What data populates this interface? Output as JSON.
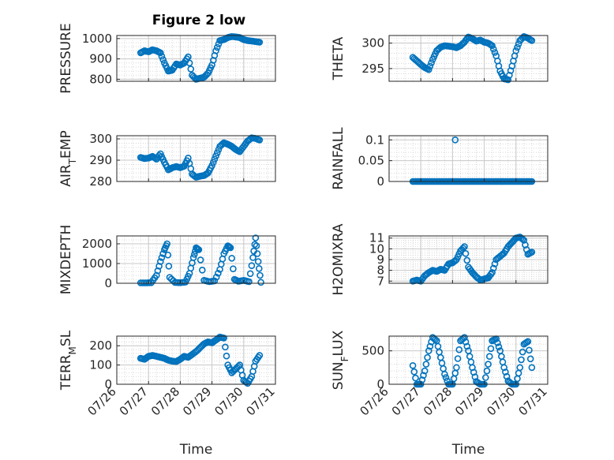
{
  "figure": {
    "title": "Figure 2 low",
    "marker_color": "#0072BD"
  },
  "chart_data": [
    {
      "type": "scatter",
      "name": "pressure",
      "ylabel": "PRESSURE",
      "ylim": [
        790,
        1015
      ],
      "yticks": [
        800,
        900,
        1000
      ],
      "x": [
        "07/26 18:00",
        "07/26 21:00",
        "07/27 00:00",
        "07/27 03:00",
        "07/27 06:00",
        "07/27 09:00",
        "07/27 12:00",
        "07/27 15:00",
        "07/27 18:00",
        "07/27 21:00",
        "07/28 00:00",
        "07/28 03:00",
        "07/28 06:00",
        "07/28 09:00",
        "07/28 12:00",
        "07/28 15:00",
        "07/28 18:00",
        "07/28 21:00",
        "07/29 00:00",
        "07/29 03:00",
        "07/29 06:00",
        "07/29 09:00",
        "07/29 12:00",
        "07/29 15:00",
        "07/29 18:00",
        "07/29 21:00",
        "07/30 00:00",
        "07/30 03:00",
        "07/30 06:00",
        "07/30 09:00",
        "07/30 12:00"
      ],
      "y": [
        930,
        940,
        935,
        945,
        940,
        930,
        880,
        840,
        845,
        875,
        870,
        880,
        910,
        820,
        800,
        805,
        810,
        830,
        870,
        940,
        990,
        995,
        1005,
        1010,
        1008,
        1005,
        995,
        990,
        988,
        985,
        982
      ]
    },
    {
      "type": "scatter",
      "name": "theta",
      "ylabel": "THETA",
      "ylim": [
        292.5,
        301.5
      ],
      "yticks": [
        295,
        300
      ],
      "x": [
        "07/26 18:00",
        "07/26 21:00",
        "07/27 00:00",
        "07/27 03:00",
        "07/27 06:00",
        "07/27 09:00",
        "07/27 12:00",
        "07/27 15:00",
        "07/27 18:00",
        "07/27 21:00",
        "07/28 00:00",
        "07/28 03:00",
        "07/28 06:00",
        "07/28 09:00",
        "07/28 12:00",
        "07/28 15:00",
        "07/28 18:00",
        "07/28 21:00",
        "07/29 00:00",
        "07/29 03:00",
        "07/29 06:00",
        "07/29 09:00",
        "07/29 12:00",
        "07/29 15:00",
        "07/29 18:00",
        "07/29 21:00",
        "07/30 00:00",
        "07/30 03:00",
        "07/30 06:00",
        "07/30 09:00",
        "07/30 12:00"
      ],
      "y": [
        297.2,
        296.5,
        295.8,
        295.2,
        294.8,
        296.8,
        298.5,
        299.2,
        299.5,
        299.4,
        299.3,
        299.1,
        299.5,
        300.2,
        301.2,
        300.9,
        300.4,
        300.6,
        300.2,
        300.0,
        299.5,
        297.5,
        294.5,
        293.0,
        292.8,
        295.5,
        298.5,
        300.5,
        301.3,
        301.0,
        300.5
      ]
    },
    {
      "type": "scatter",
      "name": "air_temp",
      "ylabel": "AIR_TEMP",
      "ylim": [
        280,
        301.5
      ],
      "yticks": [
        280,
        290,
        300
      ],
      "x": [
        "07/26 18:00",
        "07/26 21:00",
        "07/27 00:00",
        "07/27 03:00",
        "07/27 06:00",
        "07/27 09:00",
        "07/27 12:00",
        "07/27 15:00",
        "07/27 18:00",
        "07/27 21:00",
        "07/28 00:00",
        "07/28 03:00",
        "07/28 06:00",
        "07/28 09:00",
        "07/28 12:00",
        "07/28 15:00",
        "07/28 18:00",
        "07/28 21:00",
        "07/29 00:00",
        "07/29 03:00",
        "07/29 06:00",
        "07/29 09:00",
        "07/29 12:00",
        "07/29 15:00",
        "07/29 18:00",
        "07/29 21:00",
        "07/30 00:00",
        "07/30 03:00",
        "07/30 06:00",
        "07/30 09:00",
        "07/30 12:00"
      ],
      "y": [
        291.3,
        290.8,
        291.0,
        291.8,
        290.5,
        293.0,
        289.0,
        285.5,
        286.5,
        287.0,
        286.5,
        287.2,
        291.0,
        283.5,
        282.0,
        282.5,
        282.8,
        284.0,
        287.5,
        292.0,
        296.5,
        298.2,
        297.5,
        296.5,
        295.0,
        294.0,
        296.5,
        299.0,
        300.5,
        300.2,
        299.5
      ]
    },
    {
      "type": "scatter",
      "name": "rainfall",
      "ylabel": "RAINFALL",
      "ylim": [
        0,
        0.11
      ],
      "yticks": [
        0,
        0.05,
        0.1
      ],
      "ytick_labels": [
        "0",
        "0.05",
        "0.1"
      ],
      "x": [
        "07/26 18:00",
        "07/27 00:00",
        "07/27 06:00",
        "07/27 12:00",
        "07/27 18:00",
        "07/28 00:00",
        "07/28 06:00",
        "07/28 12:00",
        "07/28 18:00",
        "07/29 00:00",
        "07/29 06:00",
        "07/29 12:00",
        "07/29 18:00",
        "07/30 00:00",
        "07/30 06:00",
        "07/30 12:00",
        "07/28 02:00"
      ],
      "y": [
        0,
        0,
        0,
        0,
        0,
        0,
        0,
        0,
        0,
        0,
        0,
        0,
        0,
        0,
        0,
        0,
        0.1
      ],
      "note": "continuous zeros from 07/26 18:00 to 07/30 12:00 with a single 0.1 reading"
    },
    {
      "type": "scatter",
      "name": "mixdepth",
      "ylabel": "MIXDEPTH",
      "ylim": [
        0,
        2400
      ],
      "yticks": [
        0,
        1000,
        2000
      ],
      "x": [
        "07/26 18:00",
        "07/26 22:00",
        "07/27 02:00",
        "07/27 06:00",
        "07/27 09:00",
        "07/27 12:00",
        "07/27 14:00",
        "07/27 16:00",
        "07/27 20:00",
        "07/28 00:00",
        "07/28 04:00",
        "07/28 07:00",
        "07/28 10:00",
        "07/28 12:00",
        "07/28 14:00",
        "07/28 18:00",
        "07/28 22:00",
        "07/29 02:00",
        "07/29 06:00",
        "07/29 09:00",
        "07/29 12:00",
        "07/29 14:00",
        "07/29 17:00",
        "07/29 20:00",
        "07/30 00:00",
        "07/30 04:00",
        "07/30 07:00",
        "07/30 09:00",
        "07/30 11:00",
        "07/30 13:00"
      ],
      "y": [
        20,
        20,
        30,
        400,
        1100,
        1700,
        2000,
        300,
        40,
        30,
        60,
        500,
        1300,
        1800,
        1700,
        150,
        80,
        120,
        700,
        1500,
        1900,
        1800,
        200,
        100,
        150,
        80,
        1300,
        2300,
        1100,
        50
      ]
    },
    {
      "type": "scatter",
      "name": "h2omixra",
      "ylabel": "H2OMIXRA",
      "ylim": [
        6.8,
        11.2
      ],
      "yticks": [
        7,
        8,
        9,
        10,
        11
      ],
      "x": [
        "07/26 18:00",
        "07/26 21:00",
        "07/27 00:00",
        "07/27 03:00",
        "07/27 06:00",
        "07/27 09:00",
        "07/27 12:00",
        "07/27 15:00",
        "07/27 18:00",
        "07/27 21:00",
        "07/28 00:00",
        "07/28 03:00",
        "07/28 06:00",
        "07/28 09:00",
        "07/28 12:00",
        "07/28 15:00",
        "07/28 18:00",
        "07/28 21:00",
        "07/29 00:00",
        "07/29 03:00",
        "07/29 06:00",
        "07/29 09:00",
        "07/29 12:00",
        "07/29 15:00",
        "07/29 18:00",
        "07/29 21:00",
        "07/30 00:00",
        "07/30 03:00",
        "07/30 06:00",
        "07/30 09:00",
        "07/30 12:00"
      ],
      "y": [
        7.0,
        7.1,
        7.0,
        7.5,
        7.8,
        8.0,
        7.9,
        8.1,
        8.0,
        8.6,
        8.7,
        9.0,
        9.8,
        10.2,
        8.3,
        7.8,
        7.4,
        7.1,
        7.2,
        7.3,
        7.8,
        9.0,
        9.3,
        9.6,
        10.2,
        10.6,
        11.0,
        11.1,
        10.8,
        9.5,
        9.7
      ]
    },
    {
      "type": "scatter",
      "name": "terr_msl",
      "ylabel": "TERR_MSL",
      "ylim": [
        0,
        250
      ],
      "yticks": [
        0,
        100,
        200
      ],
      "x": [
        "07/26 18:00",
        "07/26 21:00",
        "07/27 00:00",
        "07/27 03:00",
        "07/27 06:00",
        "07/27 09:00",
        "07/27 12:00",
        "07/27 15:00",
        "07/27 18:00",
        "07/27 21:00",
        "07/28 00:00",
        "07/28 03:00",
        "07/28 06:00",
        "07/28 09:00",
        "07/28 12:00",
        "07/28 15:00",
        "07/28 18:00",
        "07/28 21:00",
        "07/29 00:00",
        "07/29 03:00",
        "07/29 06:00",
        "07/29 09:00",
        "07/29 12:00",
        "07/29 15:00",
        "07/29 18:00",
        "07/29 21:00",
        "07/30 00:00",
        "07/30 03:00",
        "07/30 06:00",
        "07/30 09:00",
        "07/30 12:00"
      ],
      "y": [
        135,
        130,
        145,
        150,
        145,
        140,
        135,
        125,
        120,
        118,
        130,
        145,
        140,
        155,
        170,
        190,
        210,
        220,
        215,
        230,
        245,
        240,
        100,
        60,
        80,
        100,
        20,
        5,
        40,
        120,
        150
      ]
    },
    {
      "type": "scatter",
      "name": "sun_flux",
      "ylabel": "SUN_FLUX",
      "ylim": [
        0,
        720
      ],
      "yticks": [
        0,
        500
      ],
      "x": [
        "07/26 18:00",
        "07/26 21:00",
        "07/27 00:00",
        "07/27 03:00",
        "07/27 06:00",
        "07/27 09:00",
        "07/27 12:00",
        "07/27 15:00",
        "07/27 18:00",
        "07/27 21:00",
        "07/28 00:00",
        "07/28 03:00",
        "07/28 06:00",
        "07/28 09:00",
        "07/28 12:00",
        "07/28 15:00",
        "07/28 18:00",
        "07/28 21:00",
        "07/29 00:00",
        "07/29 03:00",
        "07/29 06:00",
        "07/29 09:00",
        "07/29 12:00",
        "07/29 15:00",
        "07/29 18:00",
        "07/29 21:00",
        "07/30 00:00",
        "07/30 03:00",
        "07/30 06:00",
        "07/30 09:00",
        "07/30 12:00"
      ],
      "y": [
        280,
        0,
        0,
        200,
        500,
        700,
        650,
        400,
        150,
        0,
        0,
        250,
        650,
        700,
        500,
        250,
        40,
        0,
        0,
        300,
        650,
        680,
        500,
        250,
        50,
        0,
        0,
        250,
        600,
        640,
        250
      ]
    }
  ],
  "xaxis": {
    "label": "Time",
    "ticks": [
      "07/26",
      "07/27",
      "07/28",
      "07/29",
      "07/30",
      "07/31"
    ],
    "range": [
      "07/26",
      "07/31"
    ],
    "grid": "major and minor"
  }
}
